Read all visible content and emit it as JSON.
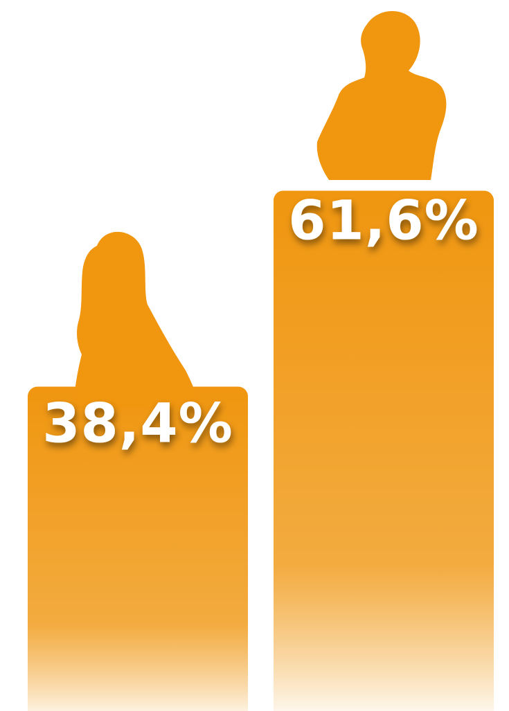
{
  "chart_data": {
    "type": "bar",
    "categories": [
      "",
      ""
    ],
    "values": [
      38.4,
      61.6
    ],
    "data_labels": [
      "38,4%",
      "61,6%"
    ],
    "icons": [
      "woman-silhouette-icon",
      "man-silhouette-icon"
    ],
    "ylim": [
      0,
      100
    ],
    "grid": false,
    "legend": "none",
    "colors": {
      "bar": "#f0960f",
      "fade": "#ffffff",
      "label": "#ffffff"
    }
  }
}
